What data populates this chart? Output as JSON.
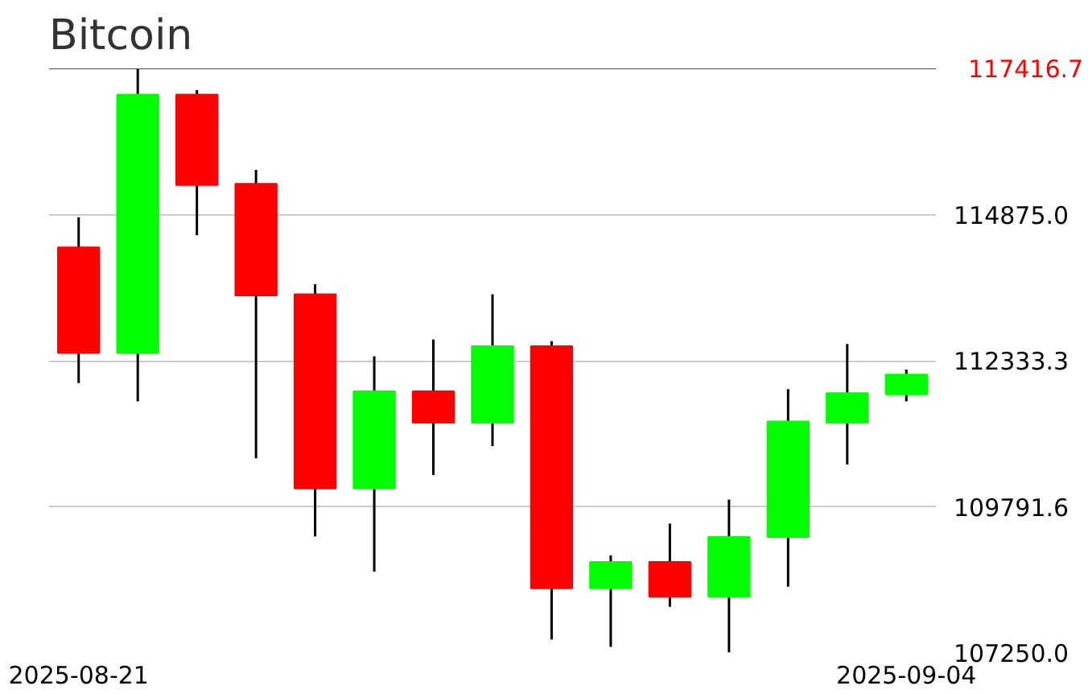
{
  "chart_data": {
    "type": "candlestick",
    "title": "Bitcoin",
    "categories": [
      "2025-08-21",
      null,
      null,
      null,
      null,
      null,
      null,
      null,
      null,
      null,
      null,
      null,
      null,
      null,
      "2025-09-04"
    ],
    "ohlc": [
      [
        114303,
        114827,
        111945,
        112469
      ],
      [
        112469,
        117416,
        111625,
        116961
      ],
      [
        116961,
        117040,
        114516,
        115389
      ],
      [
        115410,
        115651,
        110636,
        113468
      ],
      [
        113488,
        113663,
        109276,
        110112
      ],
      [
        110112,
        112411,
        108665,
        111800
      ],
      [
        111800,
        112702,
        110344,
        111256
      ],
      [
        111256,
        113488,
        110848,
        112586
      ],
      [
        112586,
        112673,
        107483,
        108374
      ],
      [
        108374,
        108947,
        107355,
        108831
      ],
      [
        108831,
        109500,
        108053,
        108228
      ],
      [
        108228,
        109917,
        107260,
        109267
      ],
      [
        109267,
        111838,
        108403,
        111276
      ],
      [
        111256,
        112624,
        110528,
        111771
      ],
      [
        111750,
        112178,
        111625,
        112091
      ]
    ],
    "colors": [
      "#ff0000",
      "#00ff00",
      "#ff0000",
      "#ff0000",
      "#ff0000",
      "#00ff00",
      "#ff0000",
      "#00ff00",
      "#ff0000",
      "#00ff00",
      "#ff0000",
      "#00ff00",
      "#00ff00",
      "#00ff00",
      "#00ff00"
    ],
    "ylim": [
      107250,
      117416.7
    ],
    "yticks": [
      {
        "value": 107250,
        "label": "107250.0"
      },
      {
        "value": 109791.6,
        "label": "109791.6"
      },
      {
        "value": 112333.3,
        "label": "112333.3"
      },
      {
        "value": 114875,
        "label": "114875.0"
      }
    ],
    "grid": "y",
    "ref_lines": [
      {
        "axis": "y",
        "value": 117416.7,
        "label": "117416.7",
        "color": "#ff0000"
      }
    ]
  }
}
